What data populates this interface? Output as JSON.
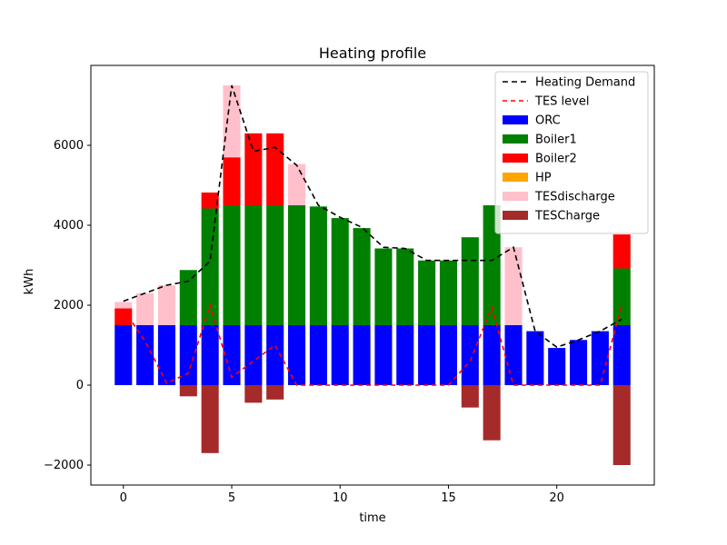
{
  "chart_data": {
    "type": "bar",
    "title": "Heating profile",
    "xlabel": "time",
    "ylabel": "kWh",
    "xlim": [
      -1.5,
      24.5
    ],
    "ylim": [
      -2500,
      8000
    ],
    "xticks": [
      0,
      5,
      10,
      15,
      20
    ],
    "yticks": [
      -2000,
      0,
      2000,
      4000,
      6000
    ],
    "legend_position": "top-right",
    "x": [
      0,
      1,
      2,
      3,
      4,
      5,
      6,
      7,
      8,
      9,
      10,
      11,
      12,
      13,
      14,
      15,
      16,
      17,
      18,
      19,
      20,
      21,
      22,
      23
    ],
    "stacked_series": [
      {
        "name": "ORC",
        "color": "#0000ff",
        "values": [
          1500,
          1500,
          1500,
          1500,
          1500,
          1500,
          1500,
          1500,
          1500,
          1500,
          1500,
          1500,
          1500,
          1500,
          1500,
          1500,
          1500,
          1500,
          1500,
          1350,
          930,
          1130,
          1350,
          1500
        ]
      },
      {
        "name": "Boiler1",
        "color": "#008000",
        "values": [
          0,
          0,
          0,
          1380,
          2920,
          3000,
          3000,
          3000,
          3000,
          2970,
          2680,
          2430,
          1920,
          1920,
          1620,
          1620,
          2200,
          3000,
          0,
          0,
          0,
          0,
          0,
          1420
        ]
      },
      {
        "name": "Boiler2",
        "color": "#ff0000",
        "values": [
          420,
          0,
          0,
          0,
          400,
          1200,
          1800,
          1800,
          0,
          0,
          0,
          0,
          0,
          0,
          0,
          0,
          0,
          0,
          0,
          0,
          0,
          0,
          0,
          850
        ]
      },
      {
        "name": "HP",
        "color": "#ffa500",
        "values": [
          0,
          0,
          0,
          0,
          0,
          0,
          0,
          0,
          0,
          0,
          0,
          0,
          0,
          0,
          0,
          0,
          0,
          0,
          0,
          0,
          0,
          0,
          0,
          0
        ]
      },
      {
        "name": "TESdischarge",
        "color": "#ffc0cb",
        "values": [
          160,
          800,
          1000,
          0,
          0,
          1800,
          0,
          0,
          1030,
          0,
          0,
          0,
          0,
          0,
          0,
          0,
          0,
          0,
          1950,
          0,
          0,
          0,
          0,
          0
        ]
      }
    ],
    "negative_series": [
      {
        "name": "TESCharge",
        "color": "#a52a2a",
        "values": [
          0,
          0,
          0,
          -280,
          -1700,
          0,
          -440,
          -360,
          0,
          0,
          0,
          0,
          0,
          0,
          0,
          0,
          -560,
          -1380,
          0,
          0,
          0,
          0,
          0,
          -2000
        ]
      }
    ],
    "line_series": [
      {
        "name": "Heating Demand",
        "color": "#000000",
        "dash": "6,4",
        "values": [
          2100,
          2300,
          2500,
          2600,
          3100,
          7500,
          5850,
          5950,
          5500,
          4500,
          4200,
          3950,
          3450,
          3420,
          3120,
          3120,
          3120,
          3120,
          3450,
          1350,
          950,
          1130,
          1350,
          1650
        ]
      },
      {
        "name": "TES level",
        "color": "#ff0000",
        "dash": "5,4",
        "values": [
          1900,
          1100,
          50,
          300,
          2000,
          200,
          600,
          1000,
          0,
          0,
          0,
          0,
          0,
          0,
          0,
          0,
          600,
          1950,
          0,
          0,
          0,
          0,
          0,
          2000
        ]
      }
    ]
  }
}
